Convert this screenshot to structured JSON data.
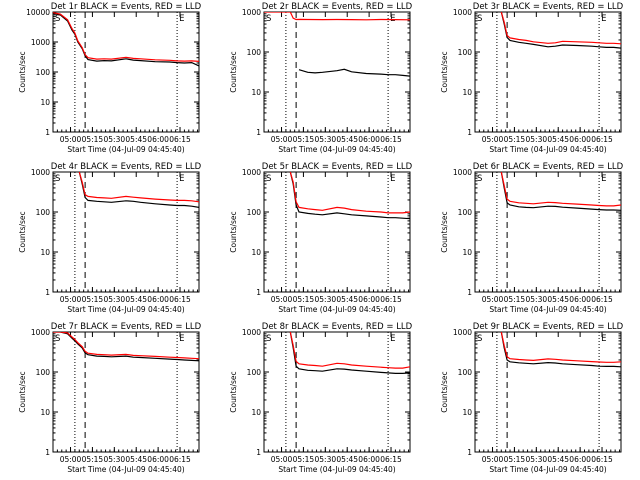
{
  "chart_data": [
    {
      "type": "line",
      "title": "Det 1r BLACK = Events, RED = LLD",
      "xlabel": "Start Time (04-Jul-09 04:45:40)",
      "ylabel": "Counts/sec",
      "yscale": "log",
      "ylim": [
        1,
        10000
      ],
      "xlim": [
        0,
        100
      ],
      "x_ticks": [
        "05:00",
        "05:15",
        "05:30",
        "05:45",
        "06:00",
        "06:15"
      ],
      "y_ticks": [
        "1",
        "10",
        "100",
        "1000",
        "10000"
      ],
      "markers": [
        "S",
        "E"
      ],
      "dotted_lines_x": [
        15,
        85
      ],
      "dashed_line_x": 22,
      "grid": false,
      "legend": "none",
      "series": [
        {
          "color": "#000000",
          "x": [
            0,
            5,
            10,
            13,
            15,
            17,
            20,
            22,
            24,
            30,
            35,
            40,
            50,
            55,
            60,
            70,
            80,
            85,
            90,
            95,
            100
          ],
          "values": [
            9000,
            8000,
            5000,
            2500,
            1800,
            1000,
            600,
            350,
            260,
            230,
            240,
            235,
            275,
            250,
            240,
            220,
            215,
            205,
            200,
            205,
            160
          ]
        },
        {
          "color": "#ff0000",
          "x": [
            0,
            5,
            10,
            13,
            15,
            17,
            20,
            22,
            24,
            30,
            35,
            40,
            50,
            55,
            60,
            70,
            80,
            85,
            90,
            95,
            100
          ],
          "values": [
            9500,
            8500,
            5500,
            2800,
            2000,
            1100,
            650,
            380,
            300,
            270,
            275,
            270,
            310,
            285,
            275,
            255,
            245,
            235,
            230,
            235,
            225
          ]
        }
      ]
    },
    {
      "type": "line",
      "title": "Det 2r BLACK = Events, RED = LLD",
      "xlabel": "Start Time (04-Jul-09 04:45:40)",
      "ylabel": "Counts/sec",
      "yscale": "log",
      "ylim": [
        1,
        1000
      ],
      "xlim": [
        0,
        100
      ],
      "x_ticks": [
        "05:00",
        "05:15",
        "05:30",
        "05:45",
        "06:00",
        "06:15"
      ],
      "y_ticks": [
        "1",
        "10",
        "100",
        "1000"
      ],
      "markers": [
        "S",
        "E"
      ],
      "dotted_lines_x": [
        15,
        85
      ],
      "dashed_line_x": 22,
      "grid": false,
      "legend": "none",
      "series": [
        {
          "color": "#000000",
          "x": [
            24,
            30,
            35,
            40,
            50,
            55,
            60,
            70,
            80,
            85,
            90,
            95,
            100
          ],
          "values": [
            36,
            31,
            30,
            31,
            34,
            37,
            32,
            29,
            28,
            27,
            27,
            26,
            25
          ]
        },
        {
          "color": "#ff0000",
          "x": [
            0,
            10,
            18,
            20,
            22,
            25,
            30,
            40,
            50,
            60,
            70,
            80,
            90,
            100
          ],
          "values": [
            1000,
            1000,
            1000,
            700,
            650,
            655,
            650,
            645,
            650,
            645,
            640,
            650,
            645,
            640
          ]
        }
      ]
    },
    {
      "type": "line",
      "title": "Det 3r BLACK = Events, RED = LLD",
      "xlabel": "Start Time (04-Jul-09 04:45:40)",
      "ylabel": "Counts/sec",
      "yscale": "log",
      "ylim": [
        1,
        1000
      ],
      "xlim": [
        0,
        100
      ],
      "x_ticks": [
        "05:00",
        "05:15",
        "05:30",
        "05:45",
        "06:00",
        "06:15"
      ],
      "y_ticks": [
        "1",
        "10",
        "100",
        "1000"
      ],
      "markers": [
        "S",
        "E"
      ],
      "dotted_lines_x": [
        15,
        85
      ],
      "dashed_line_x": 22,
      "grid": false,
      "legend": "none",
      "series": [
        {
          "color": "#000000",
          "x": [
            18,
            20,
            22,
            24,
            30,
            35,
            40,
            50,
            55,
            60,
            70,
            80,
            85,
            90,
            95,
            100
          ],
          "values": [
            1000,
            500,
            230,
            195,
            175,
            165,
            155,
            135,
            140,
            150,
            145,
            140,
            135,
            130,
            130,
            125
          ]
        },
        {
          "color": "#ff0000",
          "x": [
            18,
            20,
            22,
            24,
            30,
            35,
            40,
            50,
            55,
            60,
            70,
            80,
            85,
            90,
            95,
            100
          ],
          "values": [
            1000,
            560,
            260,
            225,
            205,
            195,
            180,
            165,
            170,
            185,
            180,
            175,
            170,
            165,
            165,
            160
          ]
        }
      ]
    },
    {
      "type": "line",
      "title": "Det 4r BLACK = Events, RED = LLD",
      "xlabel": "Start Time (04-Jul-09 04:45:40)",
      "ylabel": "Counts/sec",
      "yscale": "log",
      "ylim": [
        1,
        1000
      ],
      "xlim": [
        0,
        100
      ],
      "x_ticks": [
        "05:00",
        "05:15",
        "05:30",
        "05:45",
        "06:00",
        "06:15"
      ],
      "y_ticks": [
        "1",
        "10",
        "100",
        "1000"
      ],
      "markers": [
        "S",
        "E"
      ],
      "dotted_lines_x": [
        15,
        85
      ],
      "dashed_line_x": 22,
      "grid": false,
      "legend": "none",
      "series": [
        {
          "color": "#000000",
          "x": [
            18,
            20,
            22,
            24,
            30,
            35,
            40,
            50,
            55,
            60,
            70,
            80,
            85,
            90,
            95,
            100
          ],
          "values": [
            1000,
            500,
            230,
            195,
            185,
            180,
            175,
            190,
            185,
            175,
            160,
            150,
            145,
            145,
            140,
            130
          ]
        },
        {
          "color": "#ff0000",
          "x": [
            18,
            20,
            22,
            24,
            30,
            35,
            40,
            50,
            55,
            60,
            70,
            80,
            85,
            90,
            95,
            100
          ],
          "values": [
            1000,
            560,
            270,
            245,
            230,
            225,
            220,
            245,
            235,
            225,
            210,
            200,
            195,
            195,
            190,
            180
          ]
        }
      ]
    },
    {
      "type": "line",
      "title": "Det 5r BLACK = Events, RED = LLD",
      "xlabel": "Start Time (04-Jul-09 04:45:40)",
      "ylabel": "Counts/sec",
      "yscale": "log",
      "ylim": [
        1,
        1000
      ],
      "xlim": [
        0,
        100
      ],
      "x_ticks": [
        "05:00",
        "05:15",
        "05:30",
        "05:45",
        "06:00",
        "06:15"
      ],
      "y_ticks": [
        "1",
        "10",
        "100",
        "1000"
      ],
      "markers": [
        "S",
        "E"
      ],
      "dotted_lines_x": [
        15,
        85
      ],
      "dashed_line_x": 22,
      "grid": false,
      "legend": "none",
      "series": [
        {
          "color": "#000000",
          "x": [
            18,
            20,
            22,
            24,
            30,
            35,
            40,
            50,
            55,
            60,
            70,
            80,
            85,
            90,
            95,
            100
          ],
          "values": [
            1000,
            500,
            150,
            100,
            92,
            88,
            85,
            95,
            90,
            85,
            80,
            75,
            72,
            72,
            70,
            68
          ]
        },
        {
          "color": "#ff0000",
          "x": [
            18,
            20,
            22,
            24,
            30,
            35,
            40,
            50,
            55,
            60,
            70,
            80,
            85,
            90,
            95,
            100
          ],
          "values": [
            1000,
            560,
            180,
            130,
            120,
            115,
            110,
            130,
            125,
            115,
            105,
            100,
            95,
            95,
            95,
            100
          ]
        }
      ]
    },
    {
      "type": "line",
      "title": "Det 6r BLACK = Events, RED = LLD",
      "xlabel": "Start Time (04-Jul-09 04:45:40)",
      "ylabel": "Counts/sec",
      "yscale": "log",
      "ylim": [
        1,
        1000
      ],
      "xlim": [
        0,
        100
      ],
      "x_ticks": [
        "05:00",
        "05:15",
        "05:30",
        "05:45",
        "06:00",
        "06:15"
      ],
      "y_ticks": [
        "1",
        "10",
        "100",
        "1000"
      ],
      "markers": [
        "S",
        "E"
      ],
      "dotted_lines_x": [
        15,
        85
      ],
      "dashed_line_x": 22,
      "grid": false,
      "legend": "none",
      "series": [
        {
          "color": "#000000",
          "x": [
            18,
            20,
            22,
            24,
            30,
            35,
            40,
            50,
            55,
            60,
            70,
            80,
            85,
            90,
            95,
            100
          ],
          "values": [
            1000,
            400,
            170,
            150,
            135,
            130,
            128,
            140,
            138,
            132,
            125,
            118,
            115,
            112,
            112,
            110
          ]
        },
        {
          "color": "#ff0000",
          "x": [
            18,
            20,
            22,
            24,
            30,
            35,
            40,
            50,
            55,
            60,
            70,
            80,
            85,
            90,
            95,
            100
          ],
          "values": [
            1000,
            460,
            210,
            185,
            170,
            165,
            160,
            175,
            172,
            165,
            158,
            150,
            145,
            142,
            142,
            150
          ]
        }
      ]
    },
    {
      "type": "line",
      "title": "Det 7r BLACK = Events, RED = LLD",
      "xlabel": "Start Time (04-Jul-09 04:45:40)",
      "ylabel": "Counts/sec",
      "yscale": "log",
      "ylim": [
        1,
        1000
      ],
      "xlim": [
        0,
        100
      ],
      "x_ticks": [
        "05:00",
        "05:15",
        "05:30",
        "05:45",
        "06:00",
        "06:15"
      ],
      "y_ticks": [
        "1",
        "10",
        "100",
        "1000"
      ],
      "markers": [
        "S",
        "E"
      ],
      "dotted_lines_x": [
        15,
        85
      ],
      "dashed_line_x": 22,
      "grid": false,
      "legend": "none",
      "series": [
        {
          "color": "#000000",
          "x": [
            0,
            5,
            10,
            13,
            15,
            17,
            20,
            22,
            24,
            30,
            35,
            40,
            50,
            55,
            60,
            70,
            80,
            85,
            90,
            95,
            100
          ],
          "values": [
            1000,
            1000,
            900,
            700,
            600,
            500,
            400,
            300,
            270,
            250,
            245,
            240,
            250,
            235,
            230,
            220,
            210,
            205,
            200,
            195,
            190
          ]
        },
        {
          "color": "#ff0000",
          "x": [
            0,
            5,
            10,
            13,
            15,
            17,
            20,
            22,
            24,
            30,
            35,
            40,
            50,
            55,
            60,
            70,
            80,
            85,
            90,
            95,
            100
          ],
          "values": [
            1000,
            1000,
            950,
            750,
            650,
            540,
            430,
            330,
            295,
            275,
            270,
            265,
            275,
            260,
            255,
            245,
            235,
            230,
            225,
            220,
            215
          ]
        }
      ]
    },
    {
      "type": "line",
      "title": "Det 8r BLACK = Events, RED = LLD",
      "xlabel": "Start Time (04-Jul-09 04:45:40)",
      "ylabel": "Counts/sec",
      "yscale": "log",
      "ylim": [
        1,
        1000
      ],
      "xlim": [
        0,
        100
      ],
      "x_ticks": [
        "05:00",
        "05:15",
        "05:30",
        "05:45",
        "06:00",
        "06:15"
      ],
      "y_ticks": [
        "1",
        "10",
        "100",
        "1000"
      ],
      "markers": [
        "S",
        "E"
      ],
      "dotted_lines_x": [
        15,
        85
      ],
      "dashed_line_x": 22,
      "grid": false,
      "legend": "none",
      "series": [
        {
          "color": "#000000",
          "x": [
            18,
            20,
            22,
            24,
            30,
            35,
            40,
            50,
            55,
            60,
            70,
            80,
            85,
            90,
            95,
            100
          ],
          "values": [
            1000,
            400,
            140,
            120,
            110,
            108,
            105,
            120,
            118,
            112,
            105,
            98,
            95,
            92,
            92,
            95
          ]
        },
        {
          "color": "#ff0000",
          "x": [
            18,
            20,
            22,
            24,
            30,
            35,
            40,
            50,
            55,
            60,
            70,
            80,
            85,
            90,
            95,
            100
          ],
          "values": [
            1000,
            460,
            185,
            160,
            150,
            145,
            140,
            165,
            160,
            150,
            140,
            132,
            128,
            125,
            125,
            135
          ]
        }
      ]
    },
    {
      "type": "line",
      "title": "Det 9r BLACK = Events, RED = LLD",
      "xlabel": "Start Time (04-Jul-09 04:45:40)",
      "ylabel": "Counts/sec",
      "yscale": "log",
      "ylim": [
        1,
        1000
      ],
      "xlim": [
        0,
        100
      ],
      "x_ticks": [
        "05:00",
        "05:15",
        "05:30",
        "05:45",
        "06:00",
        "06:15"
      ],
      "y_ticks": [
        "1",
        "10",
        "100",
        "1000"
      ],
      "markers": [
        "S",
        "E"
      ],
      "dotted_lines_x": [
        15,
        85
      ],
      "dashed_line_x": 22,
      "grid": false,
      "legend": "none",
      "series": [
        {
          "color": "#000000",
          "x": [
            18,
            20,
            22,
            24,
            30,
            35,
            40,
            50,
            55,
            60,
            70,
            80,
            85,
            90,
            95,
            100
          ],
          "values": [
            1000,
            400,
            200,
            180,
            170,
            165,
            160,
            172,
            168,
            160,
            152,
            145,
            140,
            138,
            138,
            135
          ]
        },
        {
          "color": "#ff0000",
          "x": [
            18,
            20,
            22,
            24,
            30,
            35,
            40,
            50,
            55,
            60,
            70,
            80,
            85,
            90,
            95,
            100
          ],
          "values": [
            1000,
            460,
            240,
            215,
            205,
            200,
            195,
            212,
            208,
            200,
            190,
            182,
            178,
            175,
            175,
            180
          ]
        }
      ]
    }
  ]
}
